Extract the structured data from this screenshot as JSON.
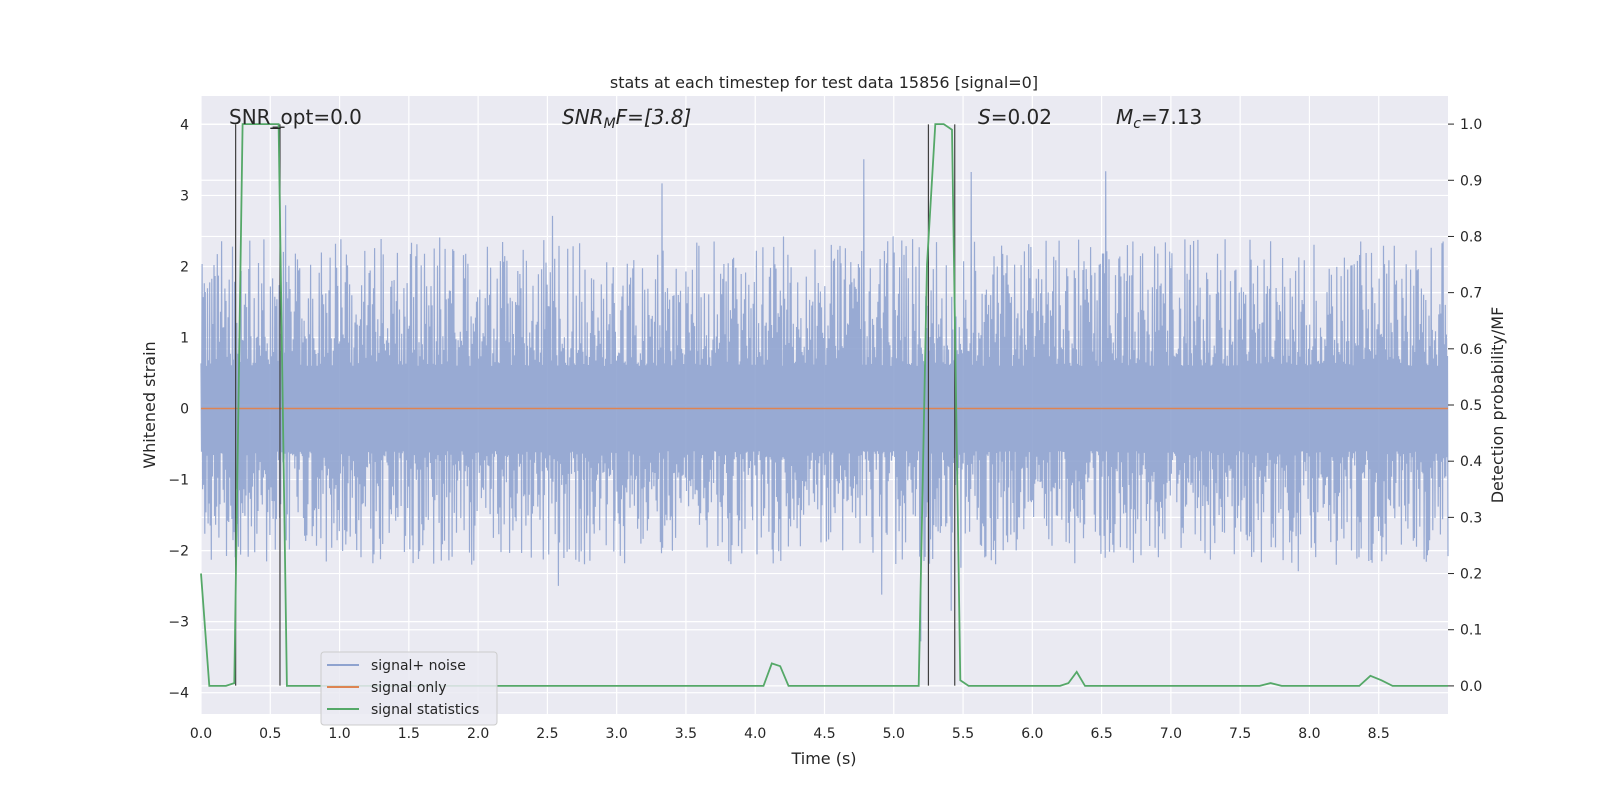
{
  "chart_data": {
    "type": "line",
    "title": "stats at each timestep for test data 15856 [signal=0]",
    "xlabel": "Time (s)",
    "ylabel_left": "Whitened strain",
    "ylabel_right": "Detection probability/MF",
    "xlim": [
      0.0,
      9.0
    ],
    "ylim_left": [
      -4.3,
      4.4
    ],
    "ylim_right": [
      -0.05,
      1.05
    ],
    "xticks": [
      "0.0",
      "0.5",
      "1.0",
      "1.5",
      "2.0",
      "2.5",
      "3.0",
      "3.5",
      "4.0",
      "4.5",
      "5.0",
      "5.5",
      "6.0",
      "6.5",
      "7.0",
      "7.5",
      "8.0",
      "8.5"
    ],
    "yticks_left": [
      "4",
      "3",
      "2",
      "1",
      "0",
      "−1",
      "−2",
      "−3",
      "−4"
    ],
    "yticks_right": [
      "1.0",
      "0.9",
      "0.8",
      "0.7",
      "0.6",
      "0.5",
      "0.4",
      "0.3",
      "0.2",
      "0.1",
      "0.0"
    ],
    "grid": true,
    "legend_position": "lower-left",
    "annotations": {
      "snr_opt": "SNR_opt=0.0",
      "snr_mf_main": "SNR",
      "snr_mf_sub": "M",
      "snr_mf_rest": "F=[3.8]",
      "s_label": "S",
      "s_rest": "=0.02",
      "mc_main": "M",
      "mc_sub": "c",
      "mc_rest": "=7.13"
    },
    "series": [
      {
        "name": "signal+ noise",
        "color": "#8fa3cf",
        "description_axis": "left",
        "envelope": {
          "typical_max": 2.4,
          "typical_min": -2.2,
          "peak_max": 4.0,
          "peak_min": -3.6
        }
      },
      {
        "name": "signal only",
        "color": "#dd8452",
        "axis": "left",
        "x": [
          0.0,
          9.0
        ],
        "y": [
          0.0,
          0.0
        ]
      },
      {
        "name": "signal statistics",
        "color": "#55a868",
        "axis": "right",
        "x": [
          0.0,
          0.06,
          0.18,
          0.24,
          0.3,
          0.36,
          0.42,
          0.48,
          0.56,
          0.62,
          0.68,
          4.0,
          4.06,
          4.12,
          4.18,
          4.24,
          5.18,
          5.24,
          5.3,
          5.36,
          5.42,
          5.48,
          5.54,
          5.6,
          6.2,
          6.26,
          6.32,
          6.38,
          7.64,
          7.72,
          7.8,
          8.36,
          8.44,
          8.52,
          8.6,
          9.0
        ],
        "y": [
          0.2,
          0.0,
          0.0,
          0.005,
          1.0,
          1.0,
          1.0,
          1.0,
          1.0,
          0.0,
          0.0,
          0.0,
          0.0,
          0.04,
          0.035,
          0.0,
          0.0,
          0.75,
          1.0,
          1.0,
          0.99,
          0.01,
          0.0,
          0.0,
          0.0,
          0.005,
          0.025,
          0.0,
          0.0,
          0.005,
          0.0,
          0.0,
          0.018,
          0.01,
          0.0,
          0.0
        ]
      }
    ],
    "vertical_markers_s": [
      0.25,
      0.57,
      5.25,
      5.44
    ],
    "short_markers_s": [
      0.56
    ]
  }
}
